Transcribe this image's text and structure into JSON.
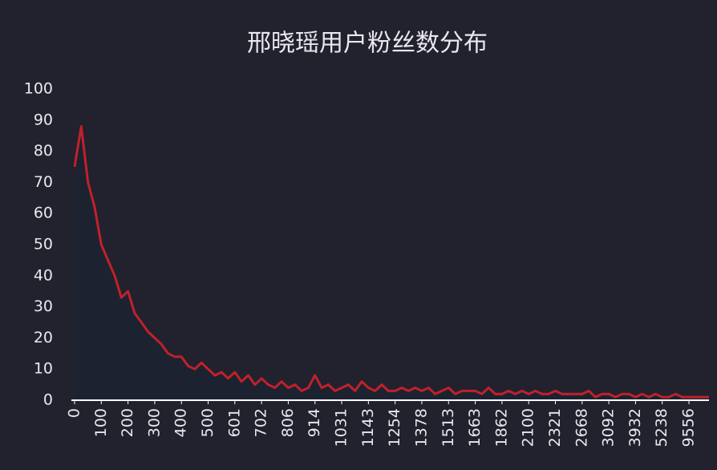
{
  "chart_data": {
    "type": "line",
    "title": "邢晓瑶用户粉丝数分布",
    "categories": [
      "0",
      null,
      null,
      null,
      "100",
      null,
      null,
      null,
      "200",
      null,
      null,
      null,
      "300",
      null,
      null,
      null,
      "400",
      null,
      null,
      null,
      "500",
      null,
      null,
      null,
      "601",
      null,
      null,
      null,
      "702",
      null,
      null,
      null,
      "806",
      null,
      null,
      null,
      "914",
      null,
      null,
      null,
      "1031",
      null,
      null,
      null,
      "1143",
      null,
      null,
      null,
      "1254",
      null,
      null,
      null,
      "1378",
      null,
      null,
      null,
      "1513",
      null,
      null,
      null,
      "1663",
      null,
      null,
      null,
      "1862",
      null,
      null,
      null,
      "2100",
      null,
      null,
      null,
      "2321",
      null,
      null,
      null,
      "2668",
      null,
      null,
      null,
      "3092",
      null,
      null,
      null,
      "3932",
      null,
      null,
      null,
      "5238",
      null,
      null,
      null,
      "9556",
      null,
      null,
      null
    ],
    "values": [
      75,
      88,
      70,
      62,
      50,
      45,
      40,
      33,
      35,
      28,
      25,
      22,
      20,
      18,
      15,
      14,
      14,
      11,
      10,
      12,
      10,
      8,
      9,
      7,
      9,
      6,
      8,
      5,
      7,
      5,
      4,
      6,
      4,
      5,
      3,
      4,
      8,
      4,
      5,
      3,
      4,
      5,
      3,
      6,
      4,
      3,
      5,
      3,
      3,
      4,
      3,
      4,
      3,
      4,
      2,
      3,
      4,
      2,
      3,
      3,
      3,
      2,
      4,
      2,
      2,
      3,
      2,
      3,
      2,
      3,
      2,
      2,
      3,
      2,
      2,
      2,
      2,
      3,
      1,
      2,
      2,
      1,
      2,
      2,
      1,
      2,
      1,
      2,
      1,
      1,
      2,
      1,
      1,
      1,
      1,
      1
    ],
    "color": "#c0212a",
    "area_color": "#1c2230",
    "area": true,
    "ylim": [
      0,
      100
    ],
    "yticks": [
      0,
      10,
      20,
      30,
      40,
      50,
      60,
      70,
      80,
      90,
      100
    ]
  }
}
